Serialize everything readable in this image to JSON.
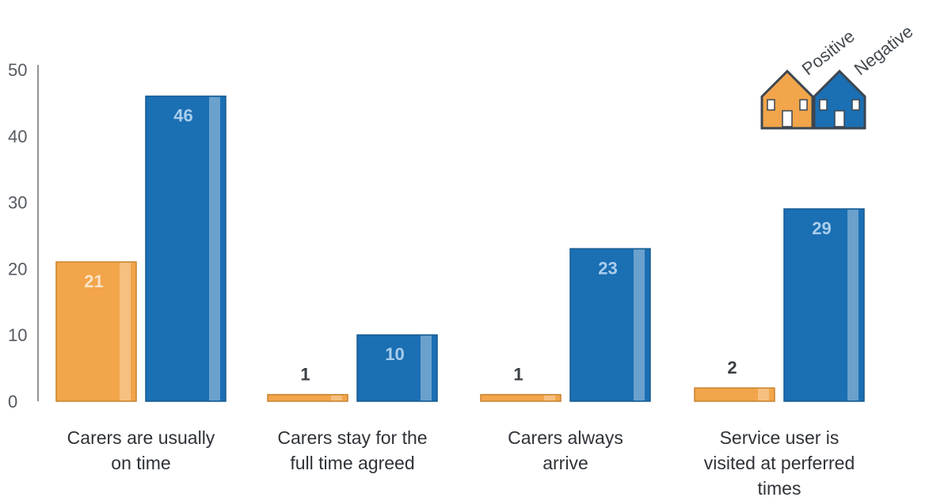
{
  "chart_data": {
    "type": "bar",
    "categories": [
      [
        "Carers are usually",
        "on time"
      ],
      [
        "Carers stay for the",
        "full time agreed"
      ],
      [
        "Carers always",
        "arrive"
      ],
      [
        "Service user is",
        "visited at perferred",
        "times"
      ]
    ],
    "series": [
      {
        "name": "Positive",
        "color": "#f2a54a",
        "values": [
          21,
          1,
          1,
          2
        ]
      },
      {
        "name": "Negative",
        "color": "#1b6fb3",
        "values": [
          46,
          10,
          23,
          29
        ]
      }
    ],
    "ylim": [
      0,
      50
    ],
    "yticks": [
      0,
      10,
      20,
      30,
      40,
      50
    ],
    "grid": false,
    "legend_position": "top-right",
    "legend_icons": [
      "house-icon",
      "house-icon"
    ]
  }
}
